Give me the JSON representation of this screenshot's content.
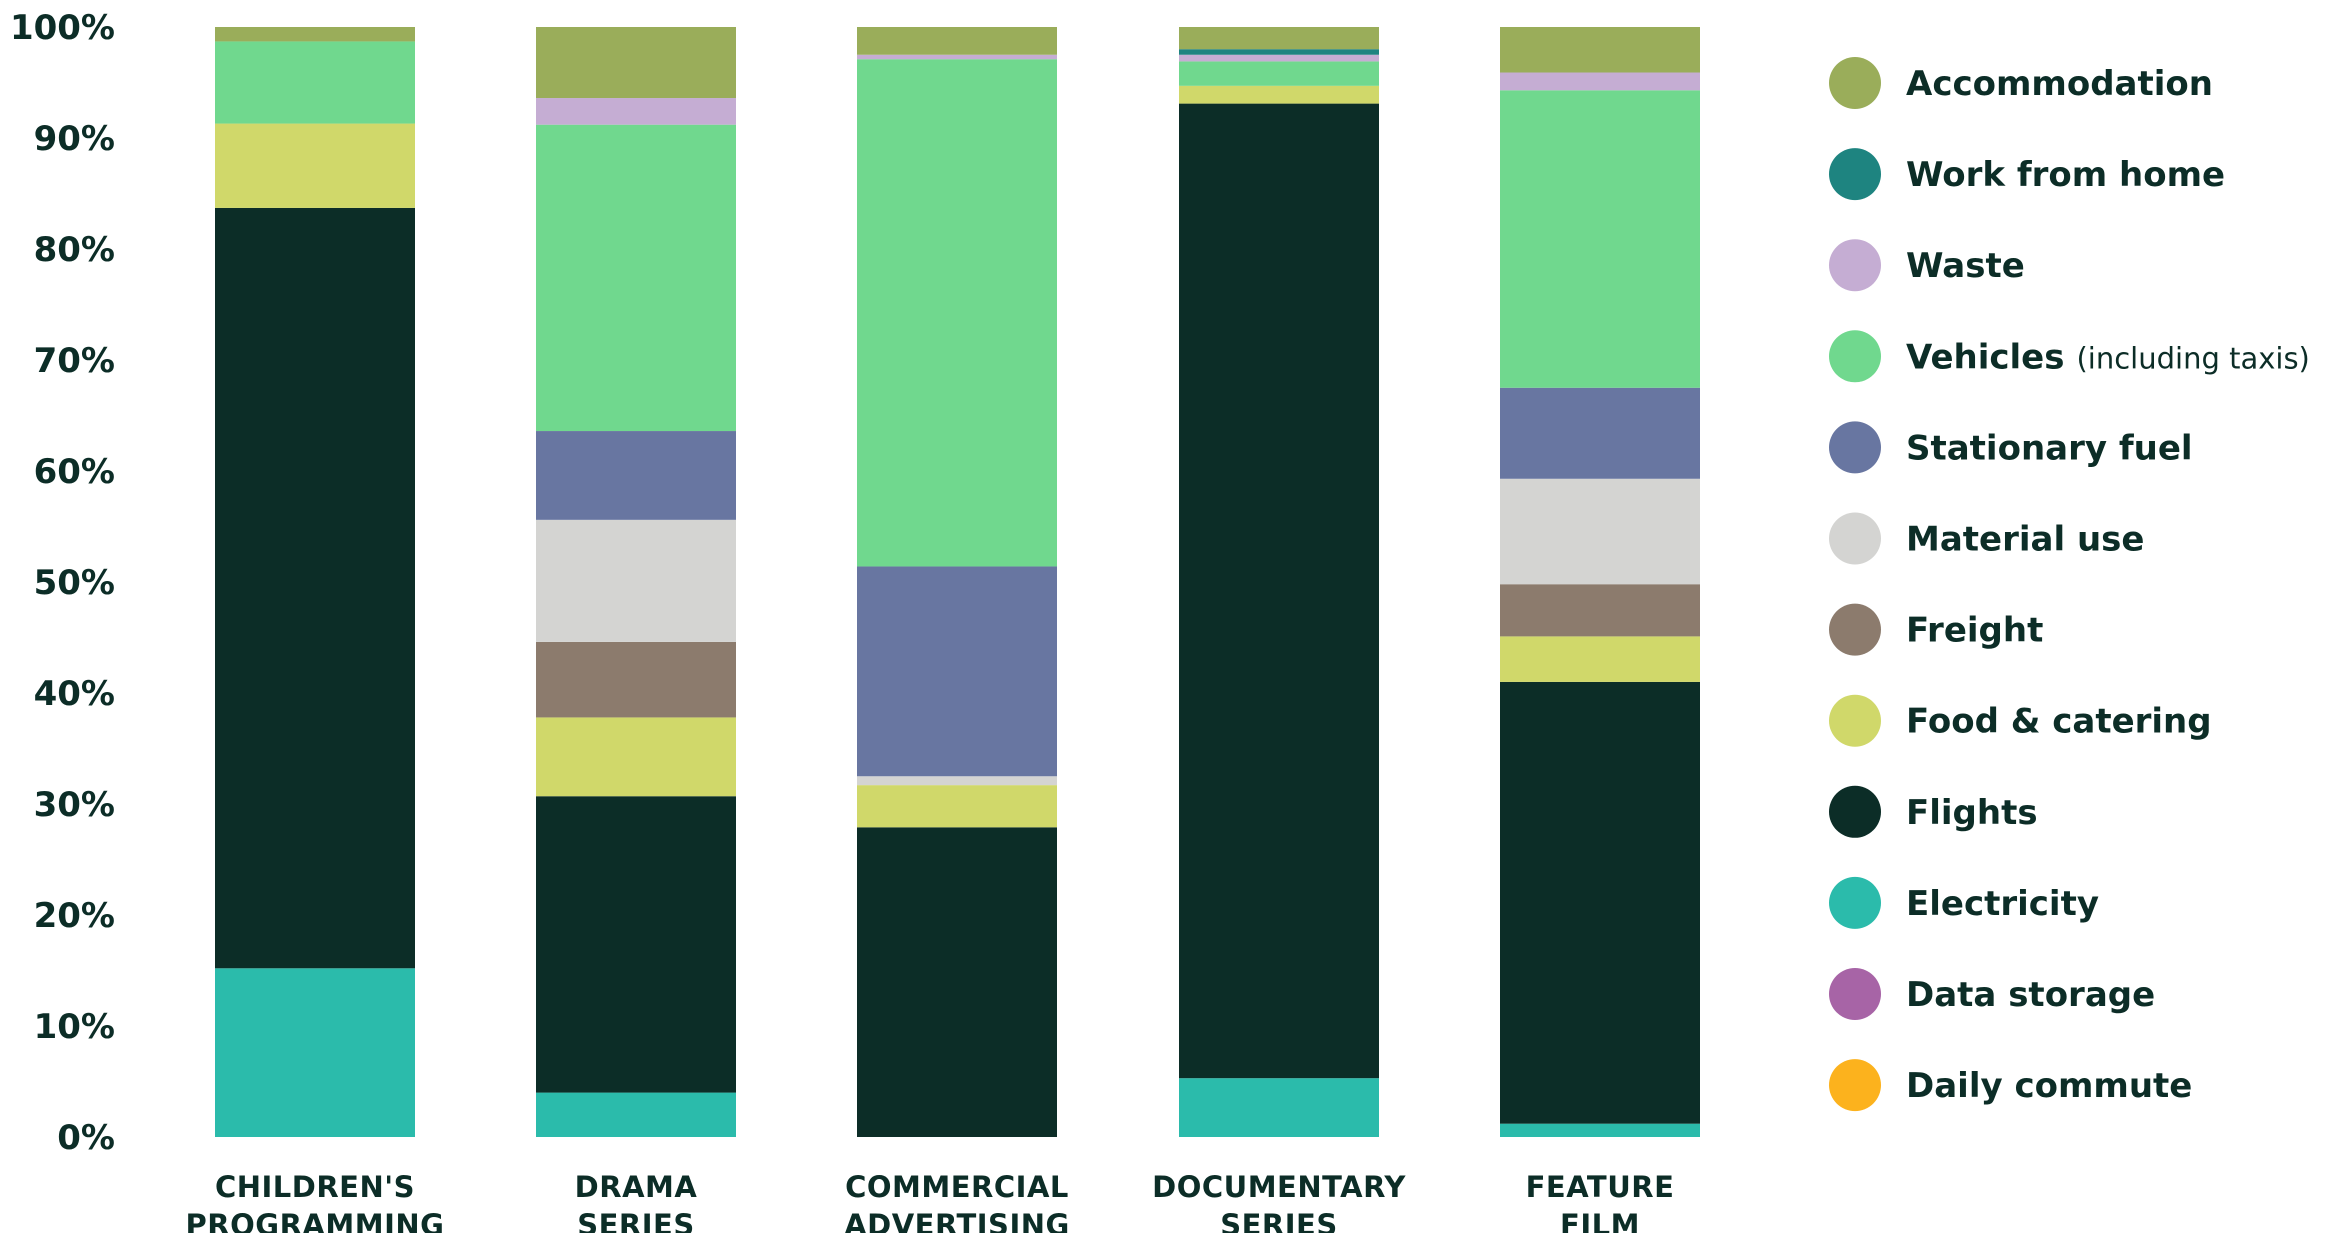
{
  "chart_data": {
    "type": "bar",
    "stacked": true,
    "ylim": [
      0,
      100
    ],
    "y_ticks": [
      "0%",
      "10%",
      "20%",
      "30%",
      "40%",
      "50%",
      "60%",
      "70%",
      "80%",
      "90%",
      "100%"
    ],
    "categories": [
      [
        "CHILDREN'S",
        "PROGRAMMING"
      ],
      [
        "DRAMA",
        "SERIES"
      ],
      [
        "COMMERCIAL",
        "ADVERTISING"
      ],
      [
        "DOCUMENTARY",
        "SERIES"
      ],
      [
        "FEATURE",
        "FILM"
      ]
    ],
    "legend_position": "right",
    "series": [
      {
        "name": "Electricity",
        "color": "#2bbbab",
        "values": [
          15.2,
          4.0,
          0,
          5.3,
          1.2
        ]
      },
      {
        "name": "Flights",
        "color": "#0c2d27",
        "values": [
          68.5,
          26.7,
          27.9,
          87.8,
          39.8
        ]
      },
      {
        "name": "Food & catering",
        "color": "#d0d86a",
        "values": [
          7.6,
          7.1,
          3.8,
          1.6,
          4.1
        ]
      },
      {
        "name": "Freight",
        "color": "#8c7b6d",
        "values": [
          0,
          6.8,
          0,
          0,
          4.7
        ]
      },
      {
        "name": "Material use",
        "color": "#d4d4d2",
        "values": [
          0,
          11.0,
          0.8,
          0,
          9.5
        ]
      },
      {
        "name": "Stationary fuel",
        "color": "#6876a1",
        "values": [
          0,
          8.0,
          18.9,
          0,
          8.2
        ]
      },
      {
        "name": "Vehicles",
        "note": "(including taxis)",
        "color": "#70d88e",
        "values": [
          7.4,
          27.6,
          45.7,
          2.2,
          26.8
        ]
      },
      {
        "name": "Waste",
        "color": "#c5add3",
        "values": [
          0,
          2.4,
          0.4,
          0.6,
          1.6
        ]
      },
      {
        "name": "Work from home",
        "color": "#1e8480",
        "values": [
          0,
          0,
          0,
          0.5,
          0
        ]
      },
      {
        "name": "Accommodation",
        "color": "#9aad5a",
        "values": [
          1.3,
          6.4,
          2.5,
          2.0,
          4.1
        ]
      },
      {
        "name": "Data storage",
        "color": "#a764a6",
        "values": [
          0,
          0,
          0,
          0,
          0
        ]
      },
      {
        "name": "Daily commute",
        "color": "#fcb21d",
        "values": [
          0,
          0,
          0,
          0,
          0
        ]
      }
    ],
    "legend_order": [
      "Accommodation",
      "Work from home",
      "Waste",
      "Vehicles",
      "Stationary fuel",
      "Material use",
      "Freight",
      "Food & catering",
      "Flights",
      "Electricity",
      "Data storage",
      "Daily commute"
    ]
  }
}
